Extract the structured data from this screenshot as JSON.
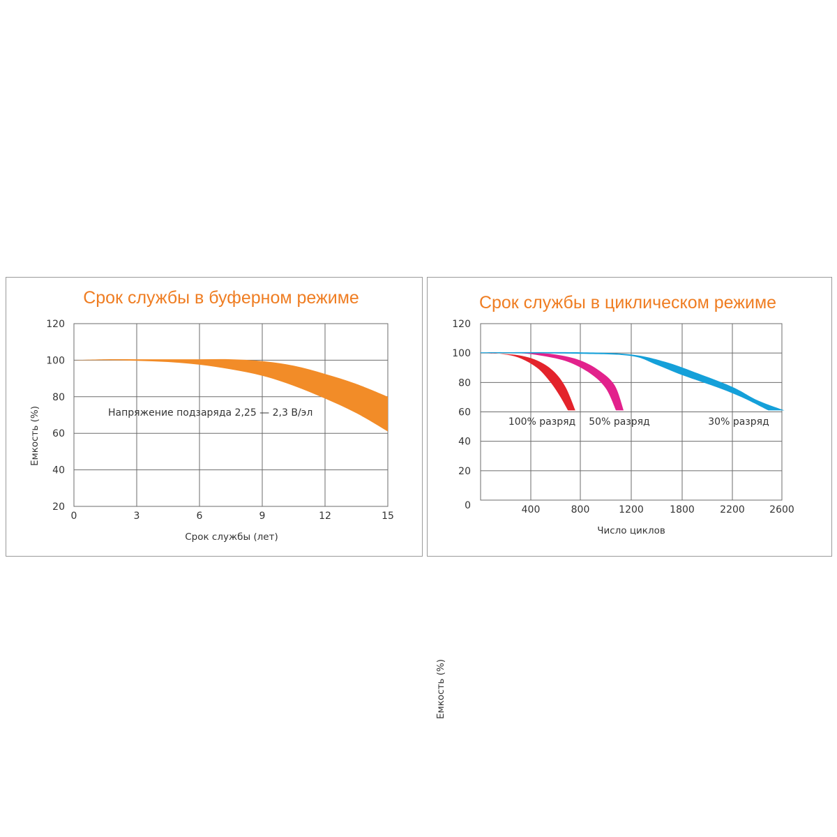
{
  "colors": {
    "title": "#ef7d22",
    "buffer_band": "#f28c28",
    "discharge_100": "#e3232b",
    "discharge_50": "#e2228c",
    "discharge_30": "#15a0d9",
    "grid": "#6b6b6b"
  },
  "chart_data": [
    {
      "type": "area",
      "title": "Срок службы в буферном режиме",
      "xlabel": "Срок службы (лет)",
      "ylabel": "Емкость (%)",
      "x_ticks": [
        "0",
        "3",
        "6",
        "9",
        "12",
        "15"
      ],
      "y_ticks": [
        "120",
        "100",
        "80",
        "60",
        "40",
        "20"
      ],
      "xlim": [
        0,
        15
      ],
      "ylim": [
        20,
        120
      ],
      "grid": true,
      "annotation": "Напряжение подзаряда 2,25 — 2,3 В/эл",
      "series": [
        {
          "upper": [
            [
              0,
              100
            ],
            [
              1.5,
              100.5
            ],
            [
              3,
              100.5
            ],
            [
              4.5,
              100.5
            ],
            [
              6,
              100.5
            ],
            [
              7.5,
              100.5
            ],
            [
              9,
              99.5
            ],
            [
              10.5,
              97
            ],
            [
              12,
              92.5
            ],
            [
              13.5,
              87
            ],
            [
              15,
              80
            ]
          ],
          "lower": [
            [
              0,
              100
            ],
            [
              1.5,
              100
            ],
            [
              3,
              99.7
            ],
            [
              4.5,
              99
            ],
            [
              6,
              97.5
            ],
            [
              7.5,
              95
            ],
            [
              9,
              91.5
            ],
            [
              10.5,
              86
            ],
            [
              12,
              79
            ],
            [
              13.5,
              71
            ],
            [
              15,
              61
            ]
          ]
        }
      ]
    },
    {
      "type": "area",
      "title": "Срок службы в циклическом режиме",
      "xlabel": "Число циклов",
      "ylabel": "Емкость (%)",
      "x_ticks": [
        "400",
        "800",
        "1200",
        "1800",
        "2200",
        "2600"
      ],
      "y_ticks": [
        "120",
        "100",
        "80",
        "60",
        "40",
        "20",
        "0"
      ],
      "ylim": [
        0,
        120
      ],
      "grid": true,
      "series": [
        {
          "name": "100% разряд",
          "upper": [
            [
              0,
              100
            ],
            [
              150,
              99.5
            ],
            [
              300,
              97
            ],
            [
              450,
              90
            ],
            [
              560,
              80
            ],
            [
              640,
              70
            ],
            [
              700,
              61
            ]
          ],
          "lower": [
            [
              0,
              100
            ],
            [
              150,
              99.5
            ],
            [
              300,
              98.5
            ],
            [
              450,
              95
            ],
            [
              580,
              88
            ],
            [
              680,
              77
            ],
            [
              760,
              61
            ]
          ]
        },
        {
          "name": "50% разряд",
          "upper": [
            [
              0,
              100
            ],
            [
              300,
              100
            ],
            [
              500,
              98
            ],
            [
              700,
              94
            ],
            [
              880,
              86
            ],
            [
              1000,
              76
            ],
            [
              1080,
              61
            ]
          ],
          "lower": [
            [
              0,
              100
            ],
            [
              400,
              100
            ],
            [
              600,
              99
            ],
            [
              800,
              95
            ],
            [
              950,
              88
            ],
            [
              1070,
              78
            ],
            [
              1140,
              61
            ]
          ]
        },
        {
          "name": "30% разряд",
          "upper": [
            [
              0,
              100.5
            ],
            [
              800,
              100.5
            ],
            [
              1200,
              99
            ],
            [
              1600,
              94
            ],
            [
              1900,
              87
            ],
            [
              2200,
              77
            ],
            [
              2400,
              68
            ],
            [
              2620,
              61
            ]
          ],
          "lower": [
            [
              0,
              100
            ],
            [
              800,
              99.5
            ],
            [
              1200,
              98
            ],
            [
              1500,
              92
            ],
            [
              1800,
              85
            ],
            [
              2100,
              76
            ],
            [
              2300,
              69
            ],
            [
              2490,
              61
            ]
          ]
        }
      ]
    }
  ]
}
